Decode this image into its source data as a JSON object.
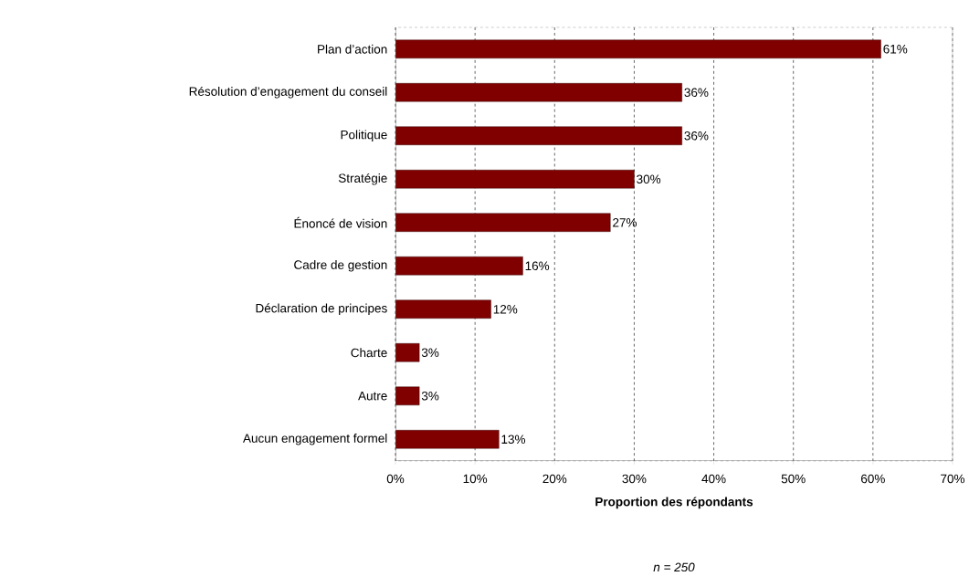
{
  "chart_data": {
    "type": "bar",
    "orientation": "horizontal",
    "categories": [
      "Plan d’action",
      "Résolution d’engagement du conseil",
      "Politique",
      "Stratégie",
      "Énoncé de vision",
      "Cadre de gestion",
      "Déclaration de principes",
      "Charte",
      "Autre",
      "Aucun engagement formel"
    ],
    "values": [
      61,
      36,
      36,
      30,
      27,
      16,
      12,
      3,
      3,
      13
    ],
    "value_labels": [
      "61%",
      "36%",
      "36%",
      "30%",
      "27%",
      "16%",
      "12%",
      "3%",
      "3%",
      "13%"
    ],
    "color": "#800000",
    "xlim": [
      0,
      70
    ],
    "xticks": [
      {
        "value": 0,
        "label": "0%"
      },
      {
        "value": 10,
        "label": "10%"
      },
      {
        "value": 20,
        "label": "20%"
      },
      {
        "value": 30,
        "label": "30%"
      },
      {
        "value": 40,
        "label": "40%"
      },
      {
        "value": 50,
        "label": "50%"
      },
      {
        "value": 60,
        "label": "60%"
      },
      {
        "value": 70,
        "label": "70%"
      }
    ],
    "grid": "x",
    "xlabel": "Proportion des répondants",
    "annotations": [
      "n = 250"
    ]
  }
}
